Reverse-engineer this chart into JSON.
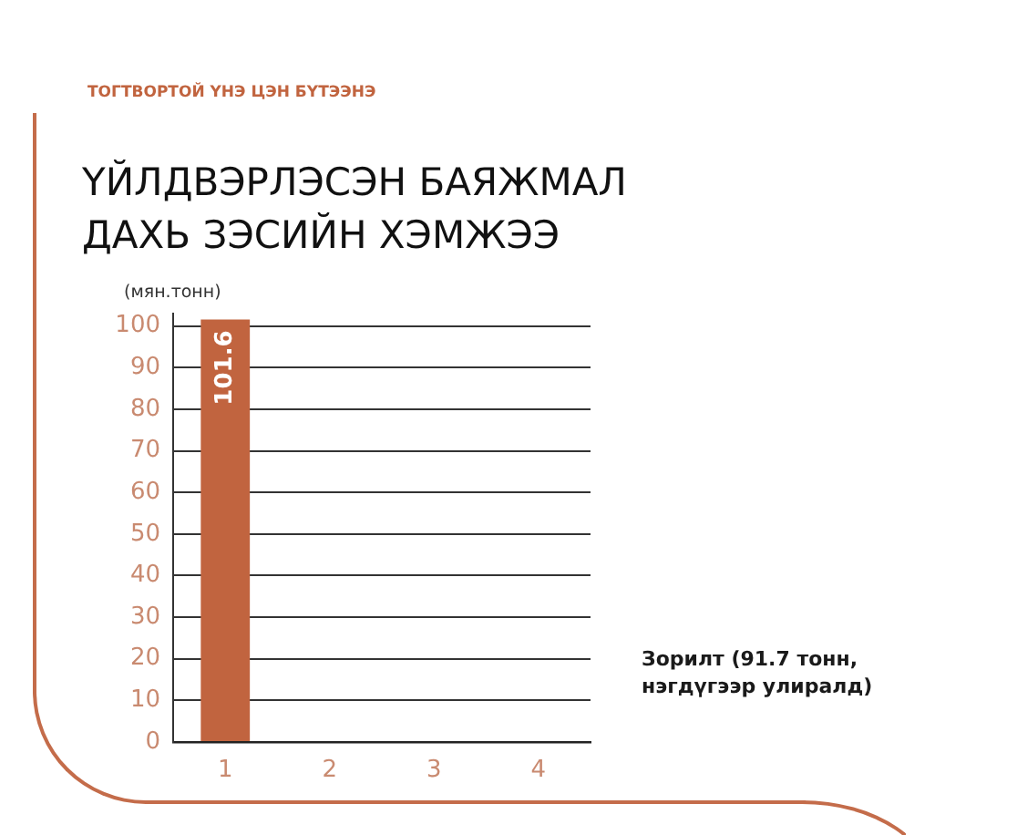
{
  "chart_data": {
    "type": "bar",
    "title": "ҮЙЛДВЭРЛЭСЭН БАЯЖМАЛ ДАХЬ ЗЭСИЙН ХЭМЖЭЭ",
    "subtitle": "ТОГТВОРТОЙ ҮНЭ ЦЭН БҮТЭЭНЭ",
    "ylabel": "(мян.тонн)",
    "categories": [
      "1",
      "2",
      "3",
      "4"
    ],
    "values": [
      101.6,
      null,
      null,
      null
    ],
    "color": "#c1643f",
    "ylim": [
      0,
      103
    ],
    "yticks": [
      0,
      10,
      20,
      30,
      40,
      50,
      60,
      70,
      80,
      90,
      100
    ],
    "grid": "y",
    "data_labels": true,
    "annotations": [
      "Зорилт (91.7 тонн, нэгдүгээр улиралд)"
    ]
  }
}
